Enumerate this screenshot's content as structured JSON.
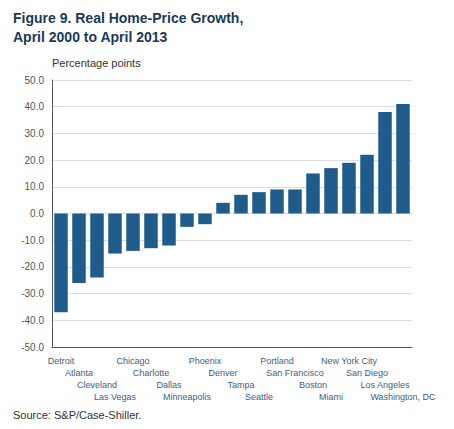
{
  "chart_data": {
    "type": "bar",
    "title": "Figure 9. Real Home-Price Growth,",
    "subtitle": "April 2000 to April 2013",
    "ylabel": "Percentage points",
    "annotations": [
      "Source: S&P/Case-Shiller."
    ],
    "categories": [
      "Detroit",
      "Atlanta",
      "Cleveland",
      "Las Vegas",
      "Chicago",
      "Charlotte",
      "Dallas",
      "Minneapolis",
      "Phoenix",
      "Denver",
      "Tampa",
      "Seattle",
      "Portland",
      "San Francisco",
      "Boston",
      "Miami",
      "New York City",
      "San Diego",
      "Los Angeles",
      "Washington, DC"
    ],
    "values": [
      -37,
      -26,
      -24,
      -15,
      -14,
      -13,
      -12,
      -5,
      -4,
      4,
      7,
      8,
      9,
      9,
      15,
      17,
      19,
      22,
      38,
      41
    ],
    "color": "#1f5c8b",
    "ylim": [
      -50,
      50
    ],
    "yticks": [
      {
        "value": -50,
        "label": "-50.0"
      },
      {
        "value": -40,
        "label": "-40.0"
      },
      {
        "value": -30,
        "label": "-30.0"
      },
      {
        "value": -20,
        "label": "-20.0"
      },
      {
        "value": -10,
        "label": "-10.0"
      },
      {
        "value": 0,
        "label": "0.0"
      },
      {
        "value": 10,
        "label": "10.0"
      },
      {
        "value": 20,
        "label": "20.0"
      },
      {
        "value": 30,
        "label": "30.0"
      },
      {
        "value": 40,
        "label": "40.0"
      },
      {
        "value": 50,
        "label": "50.0"
      }
    ],
    "grid": true
  }
}
